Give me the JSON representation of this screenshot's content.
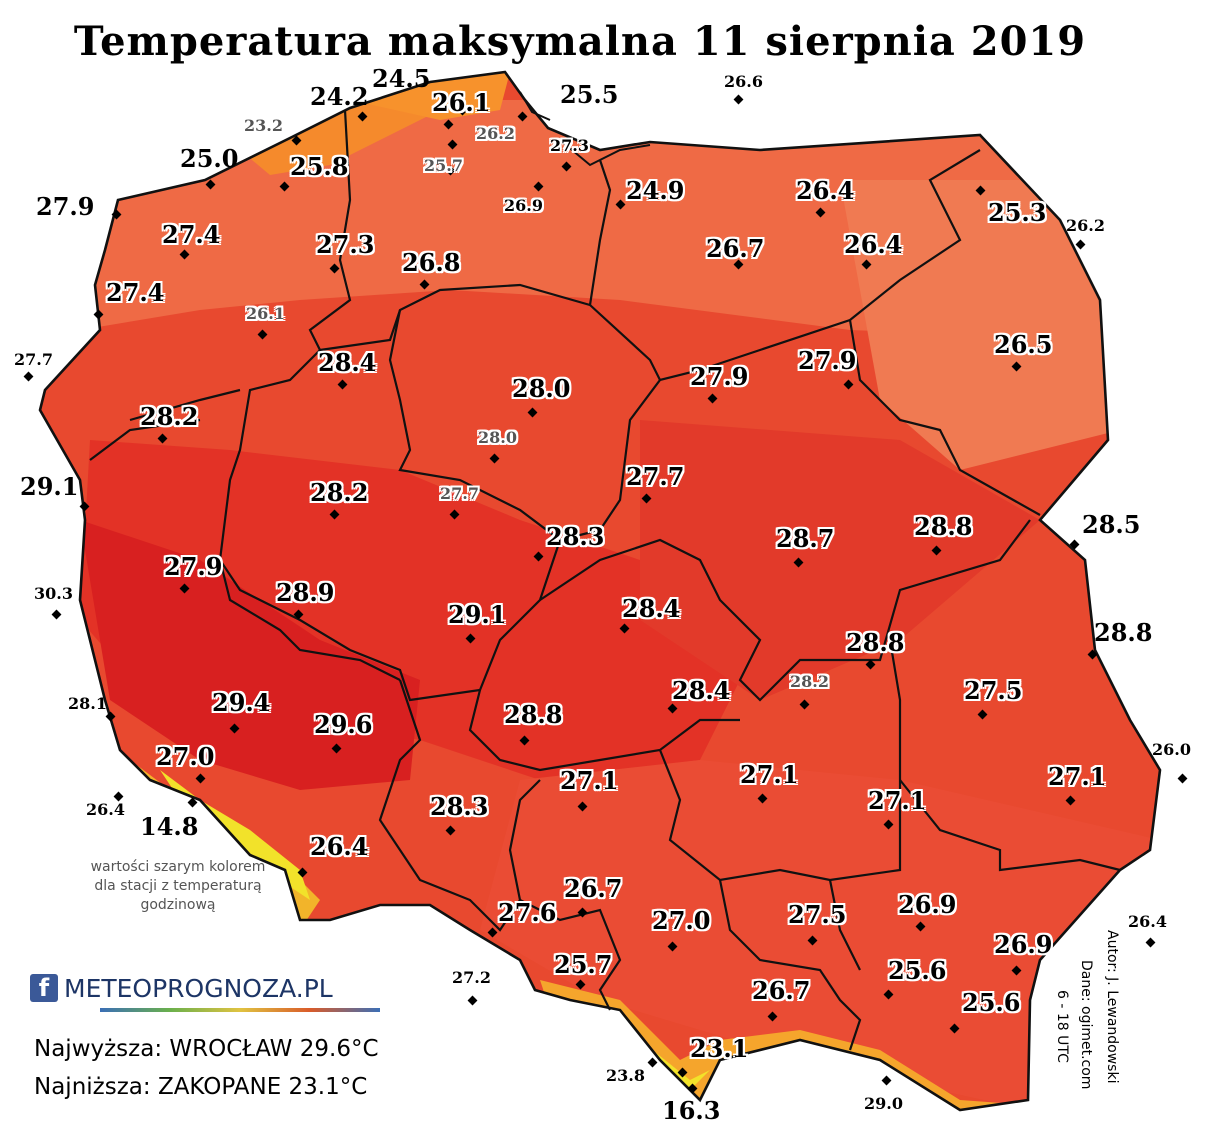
{
  "title": "Temperatura maksymalna 11 sierpnia 2019",
  "note": "wartości szarym kolorem dla stacji z temperaturą godzinową",
  "logo": {
    "fb_icon": "f",
    "text": "METEOPROGNOZA.PL"
  },
  "stats": {
    "max": "Najwyższa: WROCŁAW 29.6°C",
    "min": "Najniższa: ZAKOPANE 23.1°C"
  },
  "credits": {
    "author": "Autor: J. Lewandowski",
    "source": "Dane: ogimet.com",
    "hours": "6 - 18 UTC"
  },
  "colors": {
    "coast_orange": "#f58a2c",
    "north_light": "#ef6a45",
    "mid_red": "#e6402e",
    "hot_red": "#d82020",
    "mountain_yellow": "#f2e22a",
    "border": "#111111"
  },
  "stations": [
    {
      "v": "24.5",
      "s": "big"
    },
    {
      "v": "24.2",
      "s": "big"
    },
    {
      "v": "26.1",
      "s": "big"
    },
    {
      "v": "25.5",
      "s": "big"
    },
    {
      "v": "26.6",
      "s": "small"
    },
    {
      "v": "23.2",
      "s": "gray"
    },
    {
      "v": "26.2",
      "s": "gray"
    },
    {
      "v": "27.3",
      "s": "small"
    },
    {
      "v": "25.0",
      "s": "big"
    },
    {
      "v": "25.8",
      "s": "big"
    },
    {
      "v": "25.7",
      "s": "gray"
    },
    {
      "v": "26.9",
      "s": "small"
    },
    {
      "v": "24.9",
      "s": "big"
    },
    {
      "v": "26.4",
      "s": "big"
    },
    {
      "v": "25.3",
      "s": "big"
    },
    {
      "v": "26.2",
      "s": "small"
    },
    {
      "v": "27.9",
      "s": "big"
    },
    {
      "v": "27.4",
      "s": "big"
    },
    {
      "v": "27.3",
      "s": "big"
    },
    {
      "v": "26.8",
      "s": "big"
    },
    {
      "v": "26.7",
      "s": "big"
    },
    {
      "v": "26.4",
      "s": "big"
    },
    {
      "v": "27.4",
      "s": "big"
    },
    {
      "v": "26.1",
      "s": "gray"
    },
    {
      "v": "26.5",
      "s": "big"
    },
    {
      "v": "27.7",
      "s": "small"
    },
    {
      "v": "28.4",
      "s": "big"
    },
    {
      "v": "28.0",
      "s": "big"
    },
    {
      "v": "27.9",
      "s": "big"
    },
    {
      "v": "27.9",
      "s": "big"
    },
    {
      "v": "28.2",
      "s": "big"
    },
    {
      "v": "28.0",
      "s": "gray"
    },
    {
      "v": "29.1",
      "s": "big"
    },
    {
      "v": "28.2",
      "s": "big"
    },
    {
      "v": "27.7",
      "s": "gray"
    },
    {
      "v": "27.7",
      "s": "big"
    },
    {
      "v": "28.5",
      "s": "big"
    },
    {
      "v": "28.8",
      "s": "big"
    },
    {
      "v": "28.3",
      "s": "big"
    },
    {
      "v": "28.7",
      "s": "big"
    },
    {
      "v": "27.9",
      "s": "big"
    },
    {
      "v": "30.3",
      "s": "small"
    },
    {
      "v": "28.9",
      "s": "big"
    },
    {
      "v": "28.4",
      "s": "big"
    },
    {
      "v": "29.1",
      "s": "big"
    },
    {
      "v": "28.8",
      "s": "big"
    },
    {
      "v": "28.8",
      "s": "big"
    },
    {
      "v": "28.2",
      "s": "gray"
    },
    {
      "v": "28.4",
      "s": "big"
    },
    {
      "v": "27.5",
      "s": "big"
    },
    {
      "v": "28.1",
      "s": "small"
    },
    {
      "v": "29.4",
      "s": "big"
    },
    {
      "v": "29.6",
      "s": "big"
    },
    {
      "v": "28.8",
      "s": "big"
    },
    {
      "v": "26.0",
      "s": "small"
    },
    {
      "v": "27.0",
      "s": "big"
    },
    {
      "v": "27.1",
      "s": "big"
    },
    {
      "v": "27.1",
      "s": "big"
    },
    {
      "v": "27.1",
      "s": "big"
    },
    {
      "v": "27.1",
      "s": "big"
    },
    {
      "v": "26.4",
      "s": "small"
    },
    {
      "v": "14.8",
      "s": "big"
    },
    {
      "v": "28.3",
      "s": "big"
    },
    {
      "v": "26.4",
      "s": "big"
    },
    {
      "v": "26.7",
      "s": "big"
    },
    {
      "v": "27.6",
      "s": "big"
    },
    {
      "v": "27.0",
      "s": "big"
    },
    {
      "v": "27.5",
      "s": "big"
    },
    {
      "v": "26.9",
      "s": "big"
    },
    {
      "v": "26.4",
      "s": "small"
    },
    {
      "v": "26.9",
      "s": "big"
    },
    {
      "v": "27.2",
      "s": "small"
    },
    {
      "v": "25.7",
      "s": "big"
    },
    {
      "v": "25.6",
      "s": "big"
    },
    {
      "v": "26.7",
      "s": "big"
    },
    {
      "v": "25.6",
      "s": "big"
    },
    {
      "v": "23.1",
      "s": "big"
    },
    {
      "v": "23.8",
      "s": "small"
    },
    {
      "v": "29.0",
      "s": "small"
    },
    {
      "v": "16.3",
      "s": "big"
    }
  ]
}
